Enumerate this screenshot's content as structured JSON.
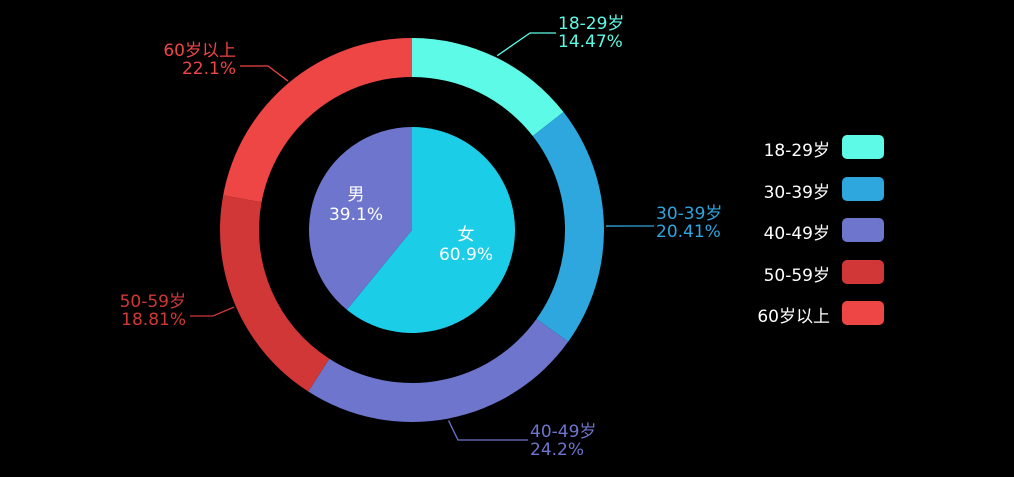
{
  "chart_data": {
    "type": "pie",
    "inner": {
      "slices": [
        {
          "label": "女",
          "value": 60.9,
          "pct_text": "60.9%",
          "color": "#1ccde8"
        },
        {
          "label": "男",
          "value": 39.1,
          "pct_text": "39.1%",
          "color": "#6d75cc"
        }
      ]
    },
    "outer": {
      "slices": [
        {
          "label": "18-29岁",
          "value": 14.47,
          "pct_text": "14.47%",
          "color": "#5dfbe7"
        },
        {
          "label": "30-39岁",
          "value": 20.41,
          "pct_text": "20.41%",
          "color": "#2ea6de"
        },
        {
          "label": "40-49岁",
          "value": 24.2,
          "pct_text": "24.2%",
          "color": "#6d75cc"
        },
        {
          "label": "50-59岁",
          "value": 18.81,
          "pct_text": "18.81%",
          "color": "#d13737"
        },
        {
          "label": "60岁以上",
          "value": 22.1,
          "pct_text": "22.1%",
          "color": "#ee4545"
        }
      ]
    },
    "legend": {
      "position": "right",
      "items": [
        {
          "label": "18-29岁",
          "color": "#5dfbe7"
        },
        {
          "label": "30-39岁",
          "color": "#2ea6de"
        },
        {
          "label": "40-49岁",
          "color": "#6d75cc"
        },
        {
          "label": "50-59岁",
          "color": "#d13737"
        },
        {
          "label": "60岁以上",
          "color": "#ee4545"
        }
      ]
    }
  }
}
